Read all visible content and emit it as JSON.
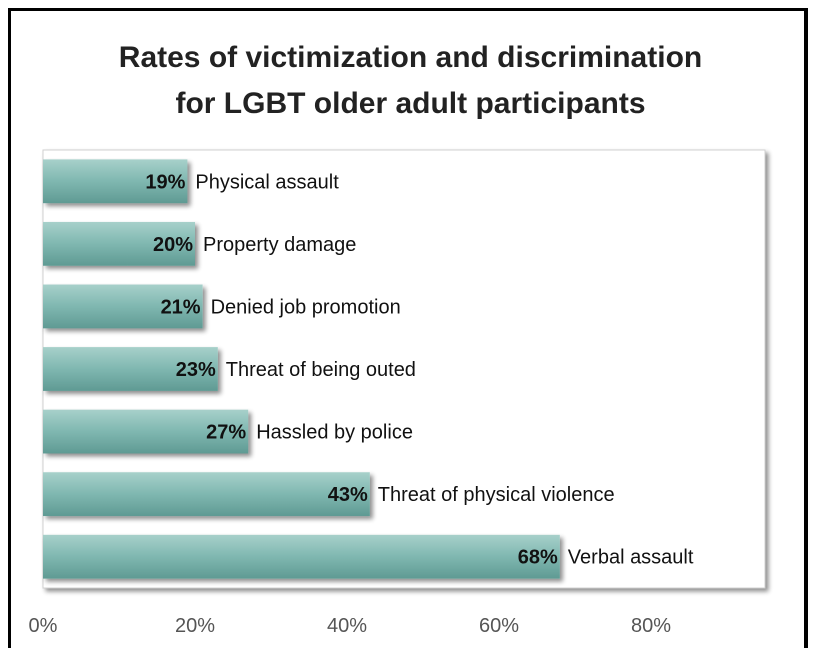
{
  "chart_data": {
    "type": "bar",
    "orientation": "horizontal",
    "title_lines": [
      "Rates of victimization and discrimination",
      "for LGBT older adult participants"
    ],
    "categories": [
      "Physical assault",
      "Property damage",
      "Denied job promotion",
      "Threat of being outed",
      "Hassled by police",
      "Threat of physical violence",
      "Verbal assault"
    ],
    "values": [
      19,
      20,
      21,
      23,
      27,
      43,
      68
    ],
    "data_labels": [
      "19%",
      "20%",
      "21%",
      "23%",
      "27%",
      "43%",
      "68%"
    ],
    "xlim": [
      0,
      95
    ],
    "xticks": [
      0,
      20,
      40,
      60,
      80
    ],
    "xtick_labels": [
      "0%",
      "20%",
      "40%",
      "60%",
      "80%"
    ],
    "xlabel": "",
    "ylabel": "",
    "grid": false,
    "legend": "none",
    "bar_color": "#7fb7b0"
  }
}
